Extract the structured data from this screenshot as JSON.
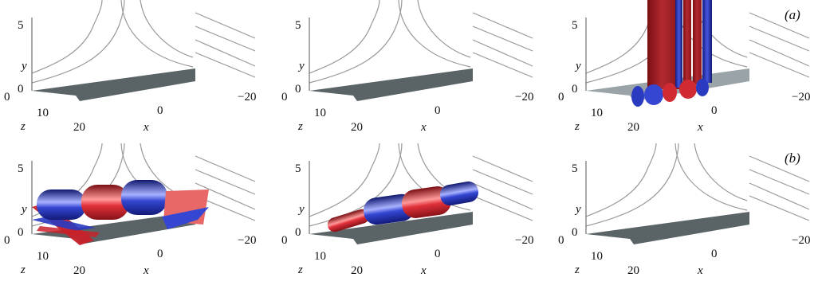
{
  "figure": {
    "rows": [
      {
        "label": "(a)",
        "panels": [
          {
            "id": "a1",
            "structures": []
          },
          {
            "id": "a2",
            "structures": []
          },
          {
            "id": "a3",
            "structures": [
              "vertical-sheets"
            ]
          }
        ]
      },
      {
        "label": "(b)",
        "panels": [
          {
            "id": "b1",
            "structures": [
              "large-rolls",
              "sheet-fragments"
            ]
          },
          {
            "id": "b2",
            "structures": [
              "tubes"
            ]
          },
          {
            "id": "b3",
            "structures": []
          }
        ]
      }
    ],
    "axes": {
      "y_label": "y",
      "y_ticks": [
        "5",
        "0"
      ],
      "z_label": "z",
      "z_ticks": [
        "0",
        "10",
        "20"
      ],
      "x_label": "x",
      "x_ticks": [
        "0",
        "−20"
      ]
    },
    "colors": {
      "positive": "#c8222a",
      "negative": "#2a3bc2",
      "floor": "#5a6466",
      "floor_light": "#9aa3a8",
      "contour": "#9a9a9a"
    }
  }
}
